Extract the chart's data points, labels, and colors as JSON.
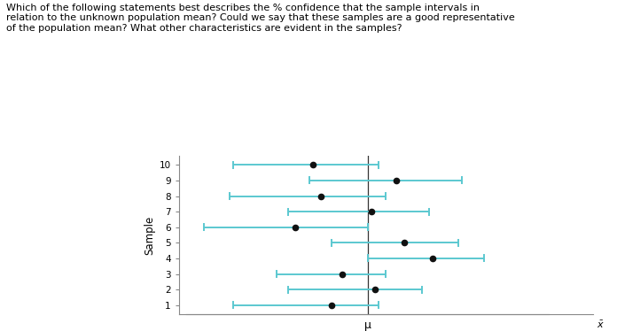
{
  "title_text": "Which of the following statements best describes the % confidence that the sample intervals in\nrelation to the unknown population mean? Could we say that these samples are a good representative\nof the population mean? What other characteristics are evident in the samples?",
  "samples": [
    1,
    2,
    3,
    4,
    5,
    6,
    7,
    8,
    9,
    10
  ],
  "means": [
    0.4,
    0.52,
    0.43,
    0.68,
    0.6,
    0.3,
    0.51,
    0.37,
    0.58,
    0.35
  ],
  "lows": [
    0.13,
    0.28,
    0.25,
    0.5,
    0.4,
    0.05,
    0.28,
    0.12,
    0.34,
    0.13
  ],
  "highs": [
    0.53,
    0.65,
    0.55,
    0.82,
    0.75,
    0.5,
    0.67,
    0.55,
    0.76,
    0.53
  ],
  "mu": 0.5,
  "interval_color": "#5bc8d0",
  "dot_color": "#111111",
  "mu_line_color": "#333333",
  "axis_color": "#888888",
  "background_color": "#ffffff",
  "ylabel": "Sample",
  "xlabel_mu": "μ",
  "figsize": [
    6.96,
    3.74
  ],
  "dpi": 100
}
